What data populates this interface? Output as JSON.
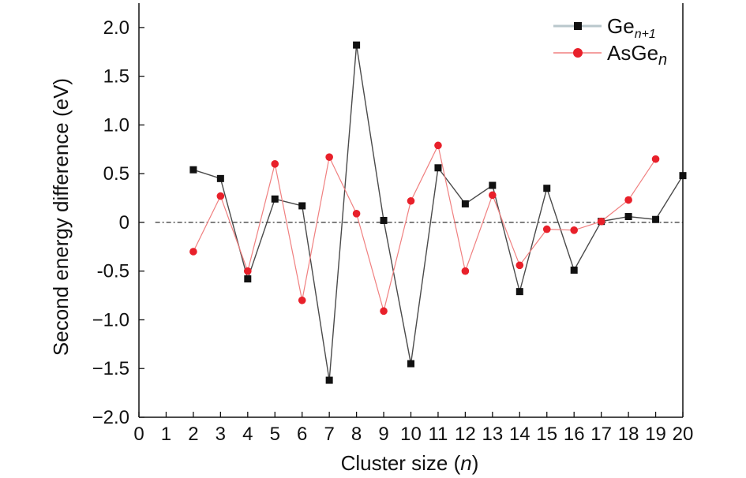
{
  "chart_data": {
    "type": "line",
    "xlabel": "Cluster size (n)",
    "ylabel": "Second energy difference (eV)",
    "xlim": [
      0,
      20
    ],
    "ylim": [
      -2.0,
      2.25
    ],
    "x_ticks": [
      0,
      1,
      2,
      3,
      4,
      5,
      6,
      7,
      8,
      9,
      10,
      11,
      12,
      13,
      14,
      15,
      16,
      17,
      18,
      19,
      20
    ],
    "y_ticks": [
      -2.0,
      -1.5,
      -1.0,
      -0.5,
      0,
      0.5,
      1.0,
      1.5,
      2.0
    ],
    "y_tick_labels": [
      "−2.0",
      "−1.5",
      "−1.0",
      "-0.5",
      "0",
      "0.5",
      "1.0",
      "1.5",
      "2.0"
    ],
    "reference_line": 0,
    "legend_position": "top-right",
    "series": [
      {
        "name": "Gen+1",
        "legend_base": "Ge",
        "legend_sub": "n+1",
        "color": "#4a4a4a",
        "marker": "square",
        "marker_color": "#111111",
        "x": [
          2,
          3,
          4,
          5,
          6,
          7,
          8,
          9,
          10,
          11,
          12,
          13,
          14,
          15,
          16,
          17,
          18,
          19,
          20
        ],
        "y": [
          0.54,
          0.45,
          -0.58,
          0.24,
          0.17,
          -1.62,
          1.82,
          0.02,
          -1.45,
          0.56,
          0.19,
          0.38,
          -0.71,
          0.35,
          -0.49,
          0.01,
          0.06,
          0.03,
          0.48
        ]
      },
      {
        "name": "AsGen",
        "legend_base": "AsGe",
        "legend_sub": "n",
        "color": "#f08080",
        "marker": "circle",
        "marker_color": "#e8202a",
        "x": [
          2,
          3,
          4,
          5,
          6,
          7,
          8,
          9,
          10,
          11,
          12,
          13,
          14,
          15,
          16,
          17,
          18,
          19
        ],
        "y": [
          -0.3,
          0.27,
          -0.5,
          0.6,
          -0.8,
          0.67,
          0.09,
          -0.91,
          0.22,
          0.79,
          -0.5,
          0.28,
          -0.44,
          -0.07,
          -0.08,
          0.01,
          0.23,
          0.65
        ]
      }
    ]
  }
}
